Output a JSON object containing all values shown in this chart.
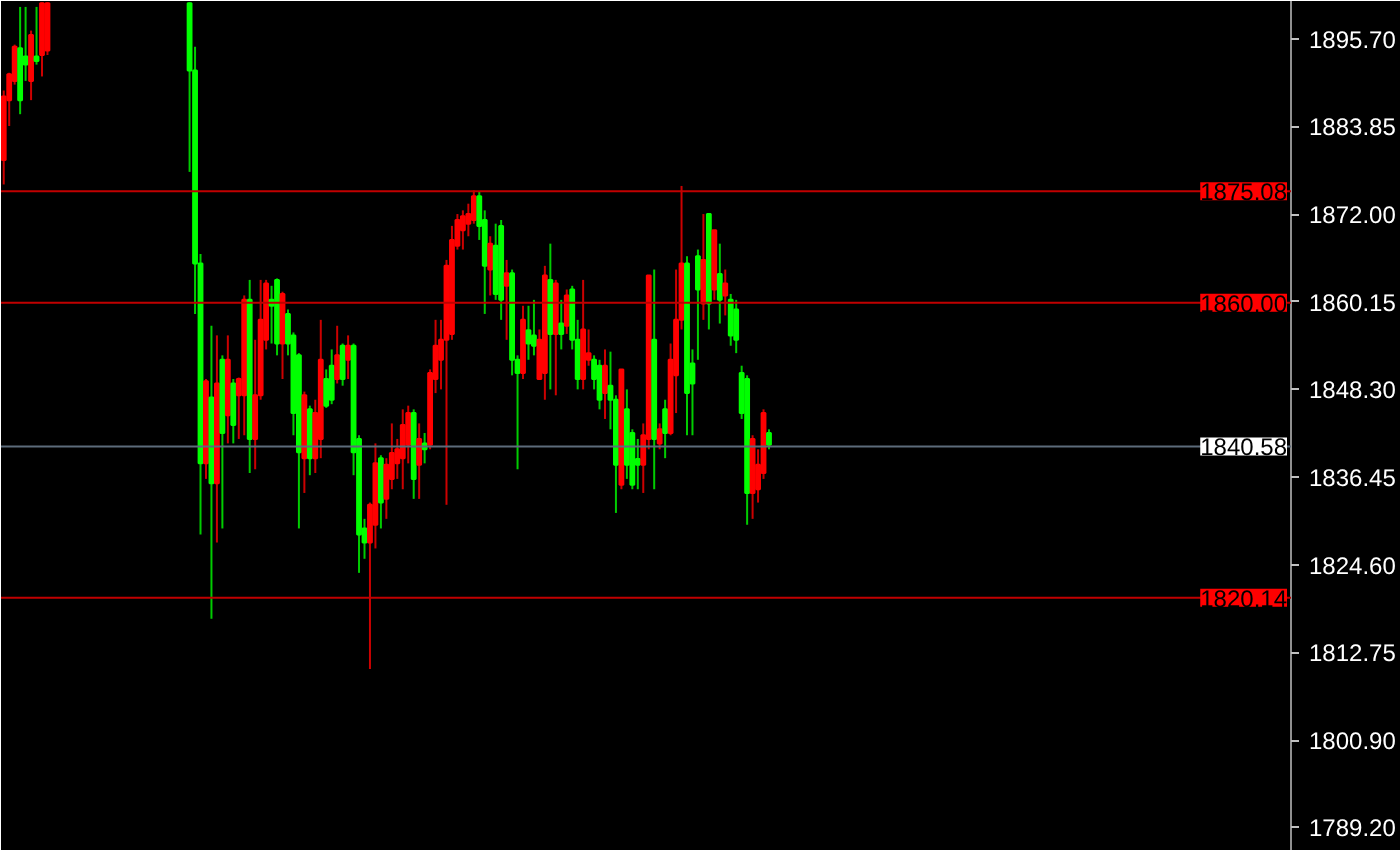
{
  "chart_data": {
    "type": "candlestick",
    "tick_labels": "y",
    "grid": false,
    "categories": [
      null,
      null,
      null,
      null,
      null,
      null,
      null,
      null,
      null,
      null,
      null,
      null,
      null,
      null,
      null,
      null,
      null,
      null,
      null,
      null,
      null,
      null,
      null,
      null,
      null,
      null,
      null,
      null,
      null,
      null,
      null,
      null,
      null,
      null,
      null,
      null,
      null,
      null,
      null,
      null,
      null,
      null,
      null,
      null,
      null,
      null,
      null,
      null,
      null,
      null,
      null,
      null,
      null,
      null,
      null,
      null,
      null,
      null,
      null,
      null,
      null,
      null,
      null,
      null,
      null,
      null,
      null,
      null,
      null,
      null,
      null,
      null,
      null,
      null,
      null,
      null,
      null,
      null,
      null,
      null,
      null,
      null,
      null,
      null,
      null,
      null,
      null,
      null,
      null,
      null,
      null,
      null,
      null,
      null,
      null,
      null,
      null,
      null,
      null,
      null,
      null,
      null,
      null,
      null,
      null,
      null,
      null,
      null,
      null,
      null,
      null,
      null,
      null,
      null,
      null,
      null,
      null,
      null,
      null,
      null,
      null,
      null,
      null,
      null,
      null,
      null,
      null,
      null,
      null,
      null,
      null,
      null,
      null,
      null,
      null,
      null,
      null,
      null,
      null,
      null,
      null,
      null,
      null,
      null,
      null,
      null,
      null,
      null,
      null,
      null,
      null,
      null,
      null,
      null,
      null,
      null,
      null,
      null,
      null,
      null,
      null,
      null,
      null,
      null,
      null,
      null,
      null,
      null,
      null,
      null,
      null,
      null,
      null,
      null,
      null,
      null,
      null,
      null,
      null,
      null,
      null,
      null,
      null,
      null,
      null,
      null,
      null,
      null,
      null,
      null,
      null,
      null,
      null,
      null,
      null,
      null,
      null,
      null,
      null,
      null,
      null,
      null,
      null,
      null,
      null,
      null,
      null,
      null,
      null,
      null,
      null,
      null,
      null,
      null,
      null,
      null,
      null,
      null,
      null,
      null,
      null,
      null,
      null,
      null,
      null,
      null,
      null,
      null,
      null,
      null,
      null,
      null,
      null,
      null,
      null,
      null
    ],
    "ohlc": [
      [
        1887.9,
        1888.7,
        1876.0,
        1879.3
      ],
      [
        1890.9,
        1891.1,
        1883.9,
        1887.4
      ],
      [
        1894.6,
        1894.9,
        1889.5,
        1890.0
      ],
      [
        1887.4,
        1900.0,
        1885.5,
        1894.4
      ],
      [
        1892.2,
        1900.0,
        1890.0,
        1893.3
      ],
      [
        1896.2,
        1896.8,
        1887.4,
        1890.0
      ],
      [
        1892.7,
        1900.0,
        1892.2,
        1893.3
      ],
      [
        1900.5,
        1900.6,
        1890.6,
        1893.5
      ],
      [
        1900.5,
        1900.6,
        1893.5,
        1894.1
      ],
      null,
      null,
      null,
      null,
      null,
      null,
      null,
      null,
      null,
      null,
      null,
      null,
      null,
      null,
      null,
      null,
      null,
      null,
      null,
      null,
      null,
      null,
      null,
      null,
      null,
      [
        1891.4,
        1900.6,
        1877.7,
        1900.5
      ],
      [
        1865.3,
        1894.6,
        1858.5,
        1891.4
      ],
      [
        1838.3,
        1866.6,
        1828.7,
        1865.3
      ],
      [
        1849.4,
        1849.7,
        1836.2,
        1838.3
      ],
      [
        1835.6,
        1856.9,
        1817.3,
        1847.2
      ],
      [
        1849.1,
        1855.6,
        1827.6,
        1835.6
      ],
      [
        1842.4,
        1852.9,
        1829.5,
        1852.3
      ],
      [
        1852.3,
        1855.6,
        1841.0,
        1844.8
      ],
      [
        1843.5,
        1849.7,
        1841.0,
        1849.1
      ],
      [
        1849.7,
        1849.9,
        1841.6,
        1847.5
      ],
      [
        1860.4,
        1861.0,
        1842.1,
        1847.5
      ],
      [
        1841.6,
        1863.1,
        1837.0,
        1860.4
      ],
      [
        1847.5,
        1855.0,
        1837.5,
        1841.6
      ],
      [
        1857.7,
        1863.1,
        1846.9,
        1847.5
      ],
      [
        1862.6,
        1863.1,
        1853.7,
        1855.0
      ],
      [
        1859.6,
        1862.3,
        1854.5,
        1860.4
      ],
      [
        1854.5,
        1863.3,
        1852.9,
        1863.1
      ],
      [
        1861.2,
        1861.5,
        1849.7,
        1854.5
      ],
      [
        1854.5,
        1859.1,
        1852.9,
        1858.5
      ],
      [
        1845.1,
        1856.0,
        1842.1,
        1855.6
      ],
      [
        1839.8,
        1853.2,
        1829.5,
        1852.9
      ],
      [
        1847.5,
        1848.0,
        1834.3,
        1839.0
      ],
      [
        1839.0,
        1846.1,
        1836.7,
        1845.6
      ],
      [
        1845.1,
        1846.9,
        1837.0,
        1839.0
      ],
      [
        1852.3,
        1857.7,
        1839.0,
        1841.6
      ],
      [
        1846.1,
        1851.0,
        1845.8,
        1849.7
      ],
      [
        1846.9,
        1853.7,
        1846.3,
        1851.5
      ],
      [
        1852.9,
        1856.9,
        1849.1,
        1849.7
      ],
      [
        1849.7,
        1854.5,
        1848.8,
        1854.2
      ],
      [
        1854.2,
        1855.6,
        1849.7,
        1852.3
      ],
      [
        1839.8,
        1854.5,
        1836.7,
        1854.2
      ],
      [
        1828.7,
        1842.1,
        1823.5,
        1841.6
      ],
      [
        1827.6,
        1830.8,
        1825.4,
        1829.5
      ],
      [
        1832.7,
        1833.0,
        1810.5,
        1827.6
      ],
      [
        1838.3,
        1841.0,
        1826.8,
        1830.0
      ],
      [
        1833.0,
        1839.4,
        1829.5,
        1839.0
      ],
      [
        1838.1,
        1839.0,
        1830.8,
        1833.5
      ],
      [
        1839.7,
        1843.7,
        1834.8,
        1836.2
      ],
      [
        1840.2,
        1841.6,
        1836.2,
        1838.3
      ],
      [
        1843.5,
        1845.6,
        1834.8,
        1839.0
      ],
      [
        1845.1,
        1846.1,
        1838.3,
        1840.8
      ],
      [
        1836.2,
        1845.6,
        1833.5,
        1845.1
      ],
      [
        1841.6,
        1843.7,
        1833.5,
        1838.1
      ],
      [
        1840.2,
        1842.4,
        1838.3,
        1841.0
      ],
      [
        1850.5,
        1851.0,
        1840.2,
        1840.8
      ],
      [
        1854.2,
        1857.7,
        1847.8,
        1849.7
      ],
      [
        1855.0,
        1857.7,
        1848.3,
        1852.3
      ],
      [
        1865.0,
        1865.8,
        1832.7,
        1855.0
      ],
      [
        1868.5,
        1870.4,
        1855.0,
        1855.8
      ],
      [
        1871.2,
        1872.0,
        1867.2,
        1867.7
      ],
      [
        1871.7,
        1872.5,
        1867.2,
        1869.8
      ],
      [
        1872.0,
        1873.4,
        1869.0,
        1870.7
      ],
      [
        1874.4,
        1875.2,
        1870.7,
        1871.2
      ],
      [
        1870.4,
        1875.0,
        1868.5,
        1874.4
      ],
      [
        1865.0,
        1872.5,
        1858.5,
        1871.2
      ],
      [
        1868.0,
        1869.0,
        1861.0,
        1864.5
      ],
      [
        1861.2,
        1870.7,
        1860.4,
        1867.7
      ],
      [
        1860.4,
        1871.2,
        1857.7,
        1870.4
      ],
      [
        1864.0,
        1865.8,
        1855.0,
        1862.3
      ],
      [
        1852.3,
        1864.5,
        1850.2,
        1864.0
      ],
      [
        1850.5,
        1852.9,
        1837.5,
        1852.3
      ],
      [
        1857.7,
        1859.6,
        1849.7,
        1850.5
      ],
      [
        1854.5,
        1859.6,
        1852.3,
        1856.3
      ],
      [
        1854.2,
        1860.4,
        1852.9,
        1855.6
      ],
      [
        1855.0,
        1856.4,
        1849.7,
        1849.7
      ],
      [
        1863.7,
        1865.0,
        1846.9,
        1850.5
      ],
      [
        1855.8,
        1868.0,
        1848.3,
        1863.1
      ],
      [
        1862.6,
        1863.1,
        1847.5,
        1855.8
      ],
      [
        1855.8,
        1860.4,
        1853.7,
        1857.2
      ],
      [
        1861.0,
        1861.8,
        1855.8,
        1856.9
      ],
      [
        1855.0,
        1862.3,
        1853.7,
        1861.8
      ],
      [
        1849.7,
        1857.7,
        1848.3,
        1855.0
      ],
      [
        1856.4,
        1863.1,
        1848.3,
        1849.7
      ],
      [
        1853.2,
        1856.4,
        1851.5,
        1852.3
      ],
      [
        1849.7,
        1852.9,
        1848.3,
        1852.3
      ],
      [
        1846.9,
        1852.3,
        1845.6,
        1851.5
      ],
      [
        1851.5,
        1853.7,
        1844.3,
        1847.8
      ],
      [
        1846.9,
        1853.4,
        1842.9,
        1848.8
      ],
      [
        1838.1,
        1847.5,
        1831.6,
        1846.9
      ],
      [
        1851.0,
        1851.0,
        1834.8,
        1835.4
      ],
      [
        1838.1,
        1848.3,
        1836.2,
        1845.6
      ],
      [
        1835.4,
        1842.9,
        1834.8,
        1842.4
      ],
      [
        1838.1,
        1841.6,
        1834.8,
        1838.9
      ],
      [
        1842.1,
        1843.7,
        1834.3,
        1838.1
      ],
      [
        1863.7,
        1863.7,
        1840.2,
        1841.6
      ],
      [
        1841.6,
        1864.5,
        1834.8,
        1855.0
      ],
      [
        1842.9,
        1843.7,
        1840.2,
        1841.0
      ],
      [
        1842.4,
        1846.9,
        1839.0,
        1845.6
      ],
      [
        1852.3,
        1854.5,
        1842.1,
        1842.4
      ],
      [
        1857.7,
        1864.5,
        1845.1,
        1850.2
      ],
      [
        1865.3,
        1875.8,
        1856.4,
        1857.7
      ],
      [
        1847.8,
        1866.3,
        1842.1,
        1865.3
      ],
      [
        1849.1,
        1853.7,
        1842.1,
        1851.8
      ],
      [
        1861.8,
        1867.2,
        1852.3,
        1866.3
      ],
      [
        1865.8,
        1872.0,
        1857.7,
        1859.9
      ],
      [
        1859.9,
        1872.0,
        1856.4,
        1872.0
      ],
      [
        1869.8,
        1869.8,
        1860.4,
        1861.8
      ],
      [
        1860.4,
        1868.0,
        1857.2,
        1863.9
      ],
      [
        1862.6,
        1864.5,
        1858.3,
        1861.0
      ],
      [
        1855.6,
        1861.2,
        1854.2,
        1860.4
      ],
      [
        1855.0,
        1860.4,
        1853.2,
        1859.1
      ],
      [
        1845.1,
        1851.5,
        1844.3,
        1850.5
      ],
      [
        1834.3,
        1850.2,
        1830.0,
        1849.7
      ],
      [
        1841.6,
        1842.1,
        1830.8,
        1834.3
      ],
      [
        1838.1,
        1840.2,
        1833.0,
        1834.8
      ],
      [
        1845.1,
        1845.6,
        1836.2,
        1837.0
      ],
      [
        1840.8,
        1842.9,
        1840.2,
        1842.4
      ],
      null,
      null,
      null,
      null,
      null,
      null,
      null,
      null,
      null,
      null,
      null,
      null,
      null,
      null,
      null,
      null,
      null,
      null,
      null,
      null,
      null,
      null,
      null,
      null,
      null,
      null,
      null,
      null,
      null,
      null,
      null,
      null,
      null,
      null,
      null,
      null,
      null,
      null,
      null,
      null,
      null,
      null,
      null,
      null,
      null,
      null,
      null,
      null,
      null,
      null,
      null,
      null,
      null,
      null,
      null,
      null,
      null,
      null,
      null,
      null,
      null,
      null,
      null,
      null,
      null,
      null,
      null,
      null,
      null,
      null,
      null,
      null,
      null,
      null,
      null,
      null,
      null,
      null,
      null,
      null,
      null,
      null,
      null,
      null,
      null,
      null,
      null,
      null,
      null,
      null,
      null,
      null,
      null,
      null,
      null
    ],
    "ylim": [
      1785.9,
      1900.8
    ],
    "yticks": [
      {
        "value": 1895.7,
        "label": "1895.70"
      },
      {
        "value": 1883.85,
        "label": "1883.85"
      },
      {
        "value": 1872.0,
        "label": "1872.00"
      },
      {
        "value": 1860.15,
        "label": "1860.15"
      },
      {
        "value": 1848.3,
        "label": "1848.30"
      },
      {
        "value": 1836.45,
        "label": "1836.45"
      },
      {
        "value": 1824.6,
        "label": "1824.60"
      },
      {
        "value": 1812.75,
        "label": "1812.75"
      },
      {
        "value": 1800.9,
        "label": "1800.90"
      },
      {
        "value": 1789.2,
        "label": "1789.20"
      }
    ],
    "ref_lines": [
      {
        "axis": "y",
        "value": 1875.08,
        "label": "1875.08",
        "color": "#c00000"
      },
      {
        "axis": "y",
        "value": 1860.0,
        "label": "1860.00",
        "color": "#c00000"
      },
      {
        "axis": "y",
        "value": 1840.58,
        "label": "1840.58",
        "color": "#5c6b7a"
      },
      {
        "axis": "y",
        "value": 1820.14,
        "label": "1820.14",
        "color": "#c00000"
      }
    ]
  }
}
